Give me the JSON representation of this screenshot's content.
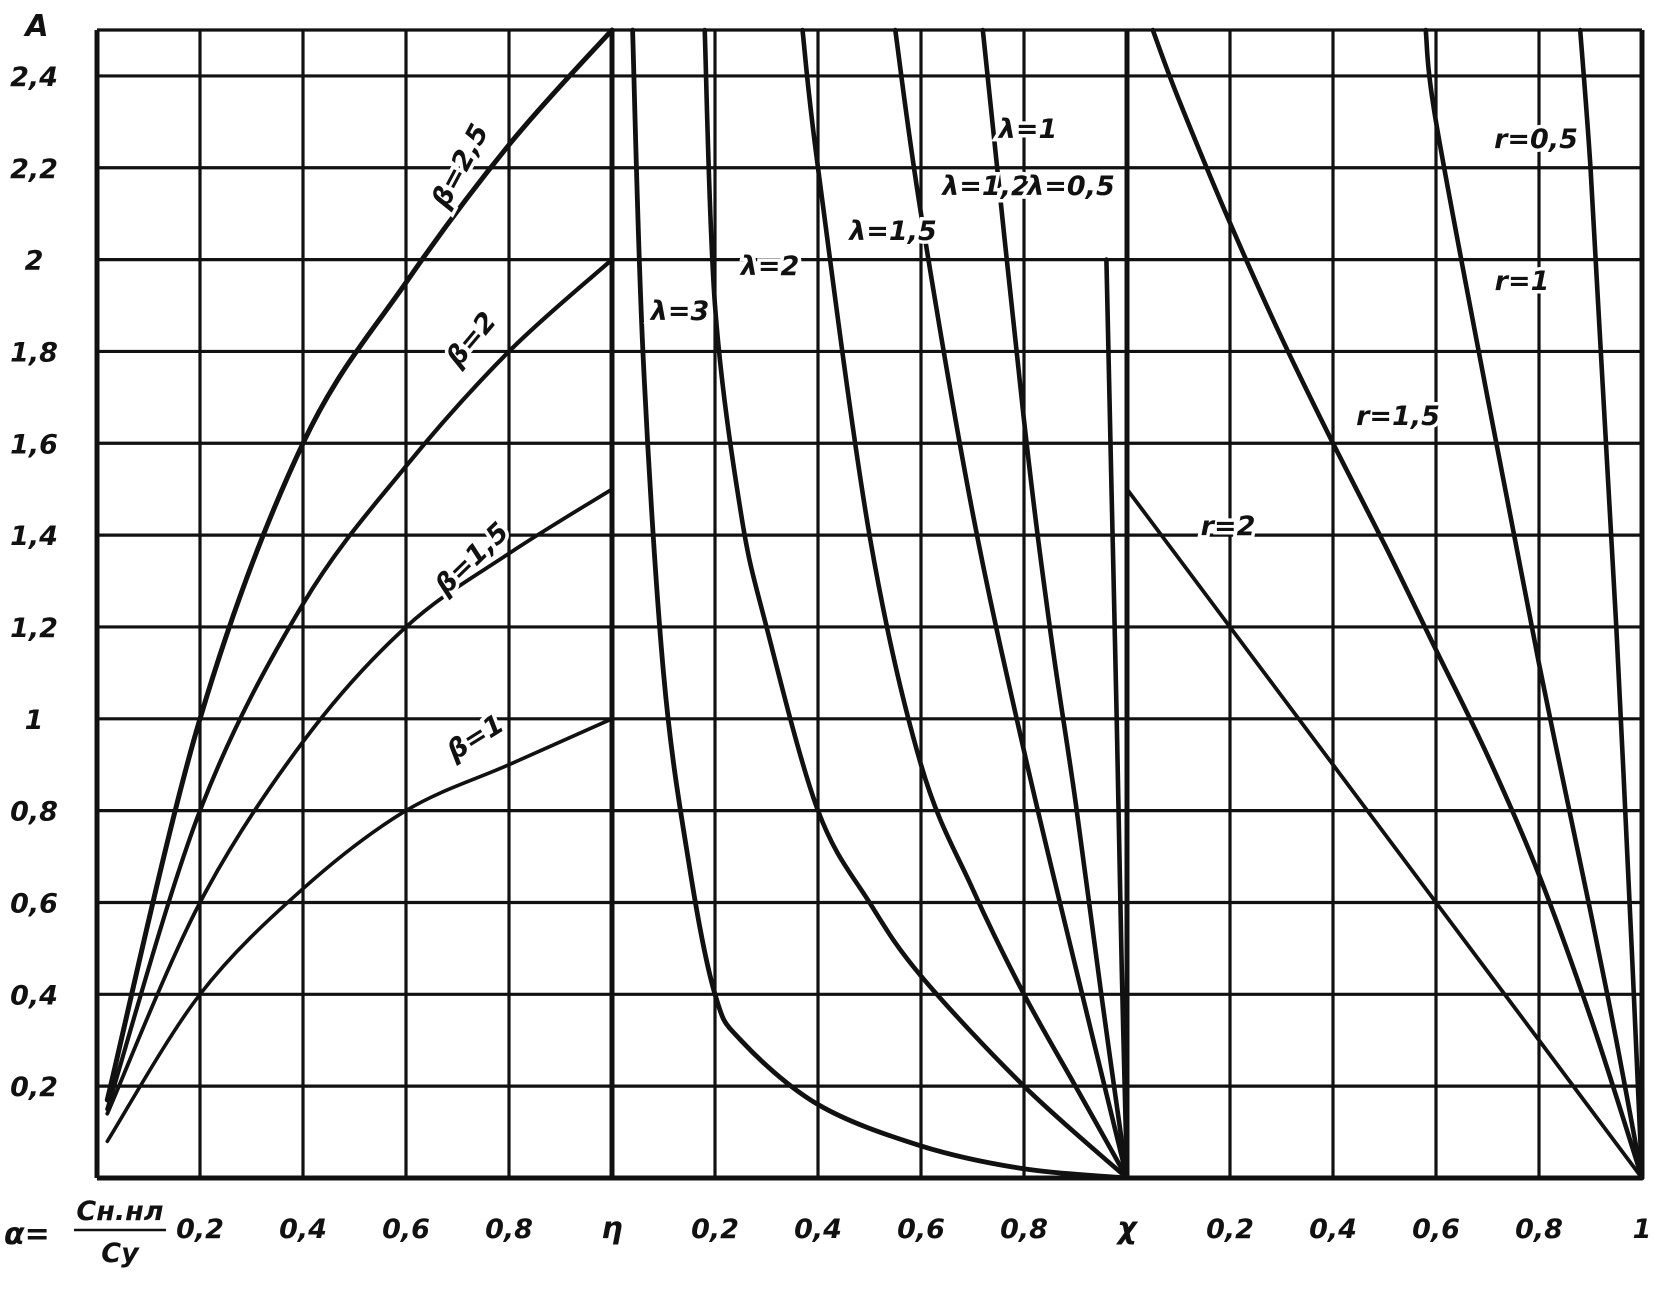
{
  "axis": {
    "y_title": "A",
    "y_ticks": [
      "0,2",
      "0,4",
      "0,6",
      "0,8",
      "1",
      "1,2",
      "1,4",
      "1,6",
      "1,8",
      "2",
      "2,2",
      "2,4"
    ],
    "y_range": [
      0,
      2.5
    ],
    "x_labels": [
      "0,2",
      "0,4",
      "0,6",
      "0,8",
      "η",
      "0,2",
      "0,4",
      "0,6",
      "0,8",
      "χ",
      "0,2",
      "0,4",
      "0,6",
      "0,8",
      "1"
    ],
    "alpha_lhs": "α=",
    "alpha_num": "Cн.нл",
    "alpha_den": "Cy"
  },
  "chart_data": [
    {
      "type": "line",
      "x_variable": "α",
      "xlim": [
        0,
        1
      ],
      "ylim": [
        0,
        2.5
      ],
      "grid": true,
      "series": [
        {
          "name": "β=2,5",
          "x": [
            0.02,
            0.2,
            0.4,
            0.6,
            0.8,
            1.0
          ],
          "y": [
            0.17,
            1.0,
            1.6,
            1.95,
            2.25,
            2.5
          ]
        },
        {
          "name": "β=2",
          "x": [
            0.02,
            0.2,
            0.4,
            0.6,
            0.8,
            1.0
          ],
          "y": [
            0.15,
            0.8,
            1.25,
            1.55,
            1.8,
            2.0
          ]
        },
        {
          "name": "β=1,5",
          "x": [
            0.02,
            0.2,
            0.4,
            0.6,
            0.8,
            1.0
          ],
          "y": [
            0.14,
            0.6,
            0.95,
            1.2,
            1.36,
            1.5
          ]
        },
        {
          "name": "β=1",
          "x": [
            0.02,
            0.2,
            0.4,
            0.6,
            0.8,
            1.0
          ],
          "y": [
            0.08,
            0.4,
            0.63,
            0.8,
            0.9,
            1.0
          ]
        }
      ]
    },
    {
      "type": "line",
      "x_variable": "η",
      "xlim": [
        0,
        1
      ],
      "ylim": [
        0,
        2.5
      ],
      "grid": true,
      "series": [
        {
          "name": "λ=3",
          "x": [
            0.04,
            0.06,
            0.1,
            0.15,
            0.2,
            0.25,
            0.4,
            0.6,
            0.8,
            1.0
          ],
          "y": [
            2.5,
            1.8,
            1.1,
            0.68,
            0.4,
            0.3,
            0.16,
            0.07,
            0.02,
            0.0
          ]
        },
        {
          "name": "λ=2",
          "x": [
            0.18,
            0.2,
            0.25,
            0.3,
            0.4,
            0.5,
            0.6,
            0.8,
            1.0
          ],
          "y": [
            2.5,
            1.9,
            1.45,
            1.2,
            0.8,
            0.6,
            0.44,
            0.2,
            0.0
          ]
        },
        {
          "name": "λ=1,5",
          "x": [
            0.37,
            0.4,
            0.5,
            0.6,
            0.7,
            0.8,
            0.9,
            1.0
          ],
          "y": [
            2.5,
            2.2,
            1.4,
            0.9,
            0.63,
            0.4,
            0.2,
            0.0
          ]
        },
        {
          "name": "λ=1,2",
          "x": [
            0.55,
            0.6,
            0.7,
            0.8,
            0.9,
            1.0
          ],
          "y": [
            2.5,
            2.1,
            1.45,
            0.93,
            0.46,
            0.0
          ]
        },
        {
          "name": "λ=1",
          "x": [
            0.72,
            0.8,
            0.85,
            0.9,
            0.95,
            1.0
          ],
          "y": [
            2.5,
            1.65,
            1.2,
            0.82,
            0.4,
            0.0
          ]
        },
        {
          "name": "λ=0,5",
          "x": [
            0.96,
            0.97,
            0.98,
            0.99,
            1.0
          ],
          "y": [
            2.0,
            1.5,
            1.0,
            0.45,
            0.0
          ]
        }
      ]
    },
    {
      "type": "line",
      "x_variable": "χ",
      "xlim": [
        0,
        1
      ],
      "ylim": [
        0,
        2.5
      ],
      "grid": true,
      "series": [
        {
          "name": "r=2",
          "x": [
            0.0,
            0.2,
            0.4,
            0.6,
            0.8,
            1.0
          ],
          "y": [
            1.5,
            1.2,
            0.9,
            0.6,
            0.3,
            0.0
          ]
        },
        {
          "name": "r=1,5",
          "x": [
            0.05,
            0.1,
            0.2,
            0.3,
            0.4,
            0.5,
            0.6,
            0.7,
            0.8,
            0.9,
            1.0
          ],
          "y": [
            2.5,
            2.35,
            2.08,
            1.83,
            1.6,
            1.38,
            1.15,
            0.92,
            0.66,
            0.35,
            0.0
          ]
        },
        {
          "name": "r=1",
          "x": [
            0.58,
            0.6,
            0.7,
            0.8,
            0.9,
            0.95,
            1.0
          ],
          "y": [
            2.5,
            2.3,
            1.7,
            1.12,
            0.58,
            0.3,
            0.0
          ]
        },
        {
          "name": "r=0,5",
          "x": [
            0.88,
            0.9,
            0.92,
            0.95,
            0.98,
            1.0
          ],
          "y": [
            2.5,
            2.2,
            1.8,
            1.2,
            0.5,
            0.0
          ]
        }
      ]
    }
  ]
}
